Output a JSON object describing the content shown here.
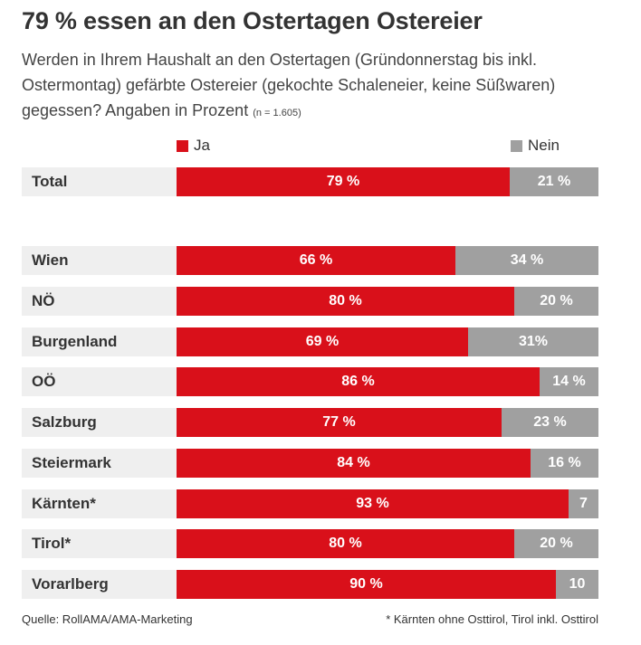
{
  "colors": {
    "ja": "#d9101a",
    "nein": "#a0a0a0",
    "row_bg": "#efefef"
  },
  "chart_data": {
    "type": "bar",
    "orientation": "horizontal-stacked-100",
    "title": "79 % essen an den Ostertagen Ostereier",
    "subtitle": "Werden in Ihrem Haushalt an den Ostertagen (Gründonnerstag bis inkl. Ostermontag) gefärbte Ostereier (gekochte Schaleneier, keine Süßwaren) gegessen? Angaben in Prozent",
    "sample_note": "(n = 1.605)",
    "legend": [
      {
        "name": "Ja",
        "color": "#d9101a"
      },
      {
        "name": "Nein",
        "color": "#a0a0a0"
      }
    ],
    "categories": [
      "Total",
      "Wien",
      "NÖ",
      "Burgenland",
      "OÖ",
      "Salzburg",
      "Steiermark",
      "Kärnten*",
      "Tirol*",
      "Vorarlberg"
    ],
    "series": [
      {
        "name": "Ja",
        "values": [
          79,
          66,
          80,
          69,
          86,
          77,
          84,
          93,
          80,
          90
        ]
      },
      {
        "name": "Nein",
        "values": [
          21,
          34,
          20,
          31,
          14,
          23,
          16,
          7,
          20,
          10
        ]
      }
    ],
    "labels": [
      {
        "ja": "79 %",
        "nein": "21 %"
      },
      {
        "ja": "66 %",
        "nein": "34 %"
      },
      {
        "ja": "80 %",
        "nein": "20 %"
      },
      {
        "ja": "69 %",
        "nein": "31%"
      },
      {
        "ja": "86 %",
        "nein": "14 %"
      },
      {
        "ja": "77 %",
        "nein": "23 %"
      },
      {
        "ja": "84 %",
        "nein": "16 %"
      },
      {
        "ja": "93 %",
        "nein": "7"
      },
      {
        "ja": "80 %",
        "nein": "20 %"
      },
      {
        "ja": "90 %",
        "nein": "10"
      }
    ],
    "source": "Quelle: RollAMA/AMA-Marketing",
    "footnote": "* Kärnten ohne Osttirol, Tirol inkl. Osttirol"
  }
}
